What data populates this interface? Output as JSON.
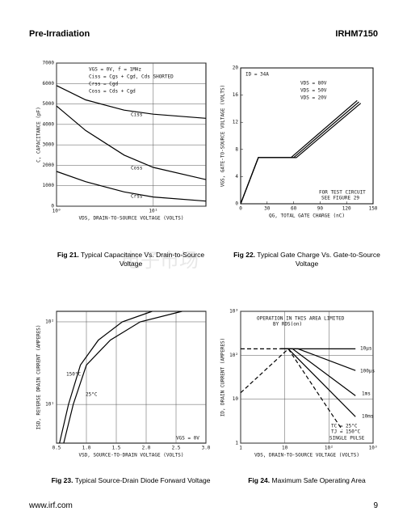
{
  "header": {
    "left": "Pre-Irradiation",
    "right": "IRHM7150"
  },
  "watermark": "电子市场",
  "footer": {
    "left": "www.irf.com",
    "page": "9"
  },
  "figures": [
    {
      "label": "Fig 21.",
      "caption": "Typical Capacitance Vs. Drain-to-Source Voltage",
      "chart": {
        "type": "line",
        "xlabel": "VDS, DRAIN-TO-SOURCE VOLTAGE (VOLTS)",
        "ylabel": "C, CAPACITANCE (pF)",
        "xlog": true,
        "xlim": [
          1,
          35
        ],
        "xticks": [
          {
            "value": 1,
            "label": "10⁰"
          },
          {
            "value": 10,
            "label": "10¹"
          }
        ],
        "ylim": [
          0,
          7000
        ],
        "yticks": [
          0,
          1000,
          2000,
          3000,
          4000,
          5000,
          6000,
          7000
        ],
        "grid": true,
        "notes": [
          "VGS = 0V,  f = 1MHz",
          "Ciss = Cgs + Cgd, Cds SHORTED",
          "Crss = Cgd",
          "Coss = Cds + Cgd"
        ],
        "series": [
          {
            "name": "Ciss",
            "color": "#000000",
            "x": [
              1,
              2,
              5,
              10,
              35
            ],
            "values": [
              5900,
              5200,
              4700,
              4500,
              4300
            ]
          },
          {
            "name": "Coss",
            "color": "#000000",
            "x": [
              1,
              2,
              5,
              10,
              35
            ],
            "values": [
              4900,
              3700,
              2500,
              1900,
              1300
            ]
          },
          {
            "name": "Crss",
            "color": "#000000",
            "x": [
              1,
              2,
              5,
              10,
              35
            ],
            "values": [
              1700,
              1200,
              700,
              450,
              250
            ]
          }
        ]
      }
    },
    {
      "label": "Fig 22.",
      "caption": "Typical Gate Charge Vs. Gate-to-Source Voltage",
      "chart": {
        "type": "line",
        "xlabel": "QG, TOTAL GATE CHARGE (nC)",
        "ylabel": "VGS, GATE-TO-SOURCE VOLTAGE (VOLTS)",
        "xlim": [
          0,
          150
        ],
        "xticks": [
          0,
          30,
          60,
          90,
          120,
          150
        ],
        "ylim": [
          0,
          20
        ],
        "yticks": [
          0,
          4,
          8,
          12,
          16,
          20
        ],
        "grid": false,
        "notes": [
          "ID = 34A",
          "FOR TEST CIRCUIT",
          "SEE FIGURE 29"
        ],
        "series": [
          {
            "name": "VDS = 80V",
            "color": "#000000",
            "x": [
              0,
              20,
              63,
              136
            ],
            "values": [
              0,
              6.8,
              6.8,
              14.8
            ]
          },
          {
            "name": "VDS = 50V",
            "color": "#000000",
            "x": [
              0,
              20,
              60,
              134
            ],
            "values": [
              0,
              6.8,
              6.8,
              15
            ]
          },
          {
            "name": "VDS = 20V",
            "color": "#000000",
            "x": [
              0,
              20,
              57,
              132
            ],
            "values": [
              0,
              6.8,
              6.8,
              15.2
            ]
          }
        ]
      }
    },
    {
      "label": "Fig 23.",
      "caption": "Typical Source-Drain Diode Forward Voltage",
      "chart": {
        "type": "line",
        "xlabel": "VSD, SOURCE-TO-DRAIN VOLTAGE (VOLTS)",
        "ylabel": "ISD, REVERSE DRAIN CURRENT (AMPERES)",
        "xlim": [
          0.5,
          3.0
        ],
        "xticks": [
          0.5,
          {
            "value": 1,
            "label": "1.0"
          },
          1.5,
          {
            "value": 2,
            "label": "2.0"
          },
          2.5,
          {
            "value": 3,
            "label": "3.0"
          }
        ],
        "ylog": true,
        "ylim": [
          3.4,
          134
        ],
        "yticks": [
          {
            "value": 10,
            "label": "10¹"
          },
          {
            "value": 100,
            "label": "10²"
          }
        ],
        "grid": true,
        "notes": [
          "VGS = 0V"
        ],
        "series": [
          {
            "name": "150°C",
            "color": "#000000",
            "x": [
              0.55,
              0.7,
              0.9,
              1.2,
              1.6,
              2.1
            ],
            "values": [
              3.4,
              10,
              30,
              60,
              100,
              134
            ]
          },
          {
            "name": "25°C",
            "color": "#000000",
            "x": [
              0.62,
              0.78,
              1.0,
              1.4,
              1.9,
              2.6
            ],
            "values": [
              3.4,
              10,
              30,
              60,
              100,
              134
            ]
          }
        ]
      }
    },
    {
      "label": "Fig 24.",
      "caption": "Maximum Safe Operating Area",
      "chart": {
        "type": "line",
        "xlabel": "VDS, DRAIN-TO-SOURCE VOLTAGE (VOLTS)",
        "ylabel": "ID, DRAIN CURRENT (AMPERES)",
        "xlog": true,
        "xlim": [
          1,
          1000
        ],
        "xticks": [
          1,
          10,
          {
            "value": 100,
            "label": "10²"
          },
          {
            "value": 1000,
            "label": "10³"
          }
        ],
        "ylog": true,
        "ylim": [
          1,
          1000
        ],
        "yticks": [
          1,
          10,
          {
            "value": 100,
            "label": "10²"
          },
          {
            "value": 1000,
            "label": "10³"
          }
        ],
        "grid": true,
        "notes": [
          "OPERATION IN THIS AREA LIMITED",
          "BY RDS(on)",
          "TC = 25°C",
          "TJ = 150°C",
          "SINGLE PULSE"
        ],
        "series": [
          {
            "color": "#000000",
            "dash": true,
            "x": [
              1,
              12
            ],
            "values": [
              14,
              140
            ]
          },
          {
            "color": "#000000",
            "dash": true,
            "x": [
              1,
              8
            ],
            "values": [
              140,
              140
            ]
          },
          {
            "color": "#000000",
            "dash": true,
            "x": [
              12,
              200
            ],
            "values": [
              140,
              2
            ]
          },
          {
            "name": "10µs",
            "color": "#000000",
            "x": [
              8,
              400
            ],
            "values": [
              140,
              140
            ]
          },
          {
            "name": "100µs",
            "color": "#000000",
            "x": [
              8,
              20,
              400
            ],
            "values": [
              140,
              140,
              45
            ]
          },
          {
            "name": "1ms",
            "color": "#000000",
            "x": [
              8,
              15,
              400
            ],
            "values": [
              140,
              140,
              12
            ]
          },
          {
            "name": "10ms",
            "color": "#000000",
            "x": [
              8,
              12,
              400
            ],
            "values": [
              140,
              140,
              4
            ]
          }
        ]
      }
    }
  ]
}
